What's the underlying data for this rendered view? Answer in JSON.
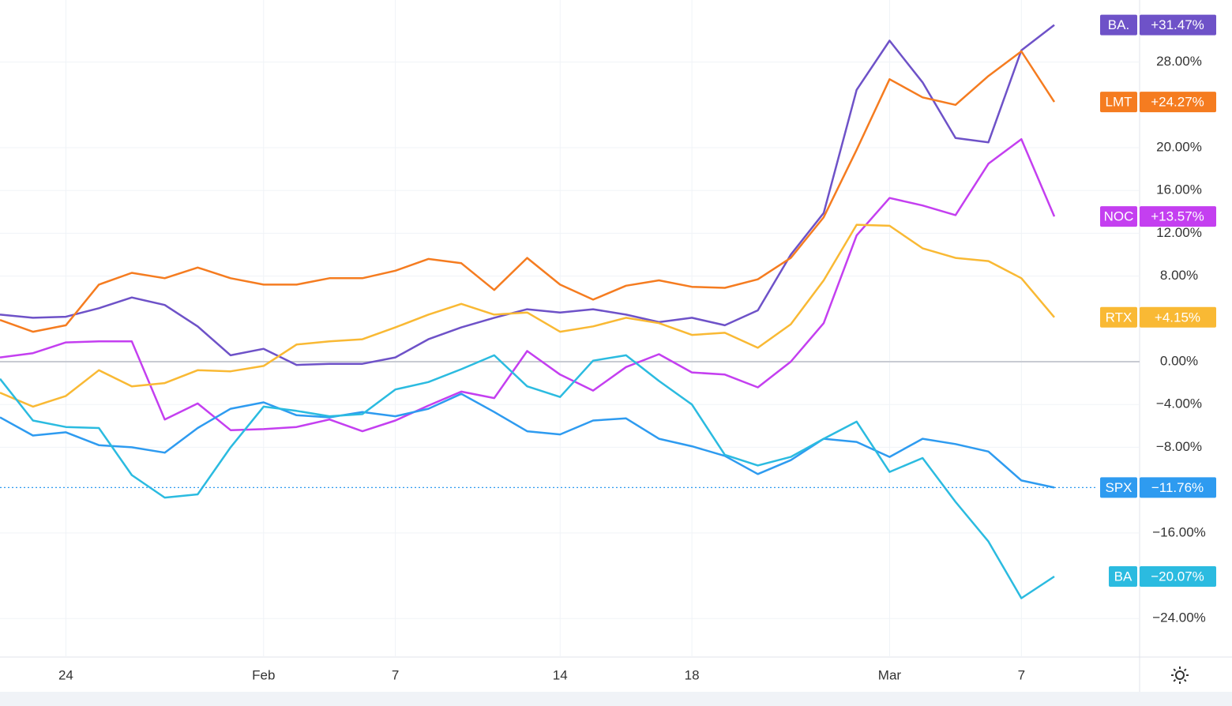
{
  "chart_data": {
    "type": "line",
    "categories": [
      null,
      null,
      "24",
      null,
      null,
      null,
      null,
      null,
      "Feb",
      null,
      null,
      null,
      "7",
      null,
      null,
      null,
      null,
      "14",
      null,
      null,
      null,
      "18",
      null,
      null,
      null,
      null,
      null,
      "Mar",
      null,
      null,
      null,
      "7",
      null
    ],
    "series": [
      {
        "name": "BA.",
        "color": "#6e52c8",
        "values": [
          4.4,
          4.1,
          4.2,
          5.0,
          6.0,
          5.3,
          3.3,
          0.6,
          1.2,
          -0.3,
          -0.2,
          -0.2,
          0.4,
          2.1,
          3.2,
          4.1,
          4.9,
          4.6,
          4.9,
          4.4,
          3.7,
          4.1,
          3.4,
          4.8,
          10.0,
          13.9,
          25.4,
          30.0,
          26.1,
          20.9,
          20.5,
          29.1,
          31.47
        ],
        "value_labels": [
          null,
          null,
          null,
          null,
          null,
          null,
          null,
          null,
          null,
          null,
          null,
          null,
          null,
          null,
          null,
          null,
          null,
          null,
          null,
          null,
          null,
          null,
          null,
          null,
          null,
          null,
          null,
          null,
          null,
          null,
          null,
          null,
          "+31.47%"
        ]
      },
      {
        "name": "LMT",
        "color": "#f57c20",
        "values": [
          3.9,
          2.8,
          3.4,
          7.2,
          8.3,
          7.8,
          8.8,
          7.8,
          7.2,
          7.2,
          7.8,
          7.8,
          8.5,
          9.6,
          9.2,
          6.7,
          9.7,
          7.2,
          5.8,
          7.1,
          7.6,
          7.0,
          6.9,
          7.7,
          9.7,
          13.5,
          19.8,
          26.4,
          24.7,
          24.0,
          26.7,
          29.0,
          24.27
        ],
        "value_labels": [
          null,
          null,
          null,
          null,
          null,
          null,
          null,
          null,
          null,
          null,
          null,
          null,
          null,
          null,
          null,
          null,
          null,
          null,
          null,
          null,
          null,
          null,
          null,
          null,
          null,
          null,
          null,
          null,
          null,
          null,
          null,
          null,
          "+24.27%"
        ]
      },
      {
        "name": "NOC",
        "color": "#c43ff0",
        "values": [
          0.4,
          0.8,
          1.8,
          1.9,
          1.9,
          -5.4,
          -3.9,
          -6.4,
          -6.3,
          -6.1,
          -5.4,
          -6.5,
          -5.5,
          -4.1,
          -2.8,
          -3.4,
          1.0,
          -1.2,
          -2.7,
          -0.5,
          0.7,
          -1.0,
          -1.2,
          -2.4,
          0.0,
          3.6,
          11.8,
          15.3,
          14.6,
          13.7,
          18.5,
          20.8,
          13.57
        ],
        "value_labels": [
          null,
          null,
          null,
          null,
          null,
          null,
          null,
          null,
          null,
          null,
          null,
          null,
          null,
          null,
          null,
          null,
          null,
          null,
          null,
          null,
          null,
          null,
          null,
          null,
          null,
          null,
          null,
          null,
          null,
          null,
          null,
          null,
          "+13.57%"
        ]
      },
      {
        "name": "RTX",
        "color": "#f9b934",
        "values": [
          -2.9,
          -4.2,
          -3.2,
          -0.8,
          -2.3,
          -2.0,
          -0.8,
          -0.9,
          -0.4,
          1.6,
          1.9,
          2.1,
          3.2,
          4.4,
          5.4,
          4.4,
          4.6,
          2.8,
          3.3,
          4.1,
          3.6,
          2.5,
          2.7,
          1.3,
          3.5,
          7.6,
          12.8,
          12.7,
          10.6,
          9.7,
          9.4,
          7.8,
          4.15
        ],
        "value_labels": [
          null,
          null,
          null,
          null,
          null,
          null,
          null,
          null,
          null,
          null,
          null,
          null,
          null,
          null,
          null,
          null,
          null,
          null,
          null,
          null,
          null,
          null,
          null,
          null,
          null,
          null,
          null,
          null,
          null,
          null,
          null,
          null,
          "+4.15%"
        ]
      },
      {
        "name": "SPX",
        "color": "#2e9bf0",
        "values": [
          -5.2,
          -6.9,
          -6.6,
          -7.8,
          -8.0,
          -8.5,
          -6.2,
          -4.4,
          -3.8,
          -5.0,
          -5.2,
          -4.7,
          -5.1,
          -4.4,
          -3.0,
          -4.7,
          -6.5,
          -6.8,
          -5.5,
          -5.3,
          -7.2,
          -7.9,
          -8.8,
          -10.5,
          -9.2,
          -7.2,
          -7.5,
          -8.9,
          -7.2,
          -7.7,
          -8.4,
          -11.1,
          -11.76
        ],
        "value_labels": [
          null,
          null,
          null,
          null,
          null,
          null,
          null,
          null,
          null,
          null,
          null,
          null,
          null,
          null,
          null,
          null,
          null,
          null,
          null,
          null,
          null,
          null,
          null,
          null,
          null,
          null,
          null,
          null,
          null,
          null,
          null,
          null,
          "−11.76%"
        ]
      },
      {
        "name": "BA",
        "color": "#2bbbe0",
        "values": [
          -1.6,
          -5.5,
          -6.1,
          -6.2,
          -10.6,
          -12.7,
          -12.4,
          -8.0,
          -4.2,
          -4.6,
          -5.1,
          -4.9,
          -2.6,
          -1.9,
          -0.7,
          0.6,
          -2.3,
          -3.3,
          0.1,
          0.6,
          -1.8,
          -4.0,
          -8.7,
          -9.7,
          -8.9,
          -7.2,
          -5.6,
          -10.3,
          -9.0,
          -13.1,
          -16.8,
          -22.1,
          -20.07
        ],
        "value_labels": [
          null,
          null,
          null,
          null,
          null,
          null,
          null,
          null,
          null,
          null,
          null,
          null,
          null,
          null,
          null,
          null,
          null,
          null,
          null,
          null,
          null,
          null,
          null,
          null,
          null,
          null,
          null,
          null,
          null,
          null,
          null,
          null,
          "−20.07%"
        ]
      }
    ],
    "ylim": [
      -27.6,
      33.8
    ],
    "yticks": [
      {
        "value": 28,
        "label": "28.00%"
      },
      {
        "value": 20,
        "label": "20.00%"
      },
      {
        "value": 16,
        "label": "16.00%"
      },
      {
        "value": 12,
        "label": "12.00%"
      },
      {
        "value": 8,
        "label": "8.00%"
      },
      {
        "value": 0,
        "label": "0.00%"
      },
      {
        "value": -4,
        "label": "−4.00%"
      },
      {
        "value": -8,
        "label": "−8.00%"
      },
      {
        "value": -16,
        "label": "−16.00%"
      },
      {
        "value": -24,
        "label": "−24.00%"
      }
    ],
    "grid": true
  }
}
